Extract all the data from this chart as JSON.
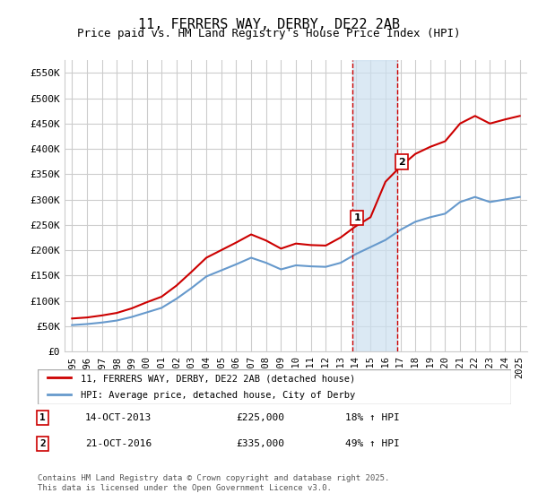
{
  "title": "11, FERRERS WAY, DERBY, DE22 2AB",
  "subtitle": "Price paid vs. HM Land Registry's House Price Index (HPI)",
  "xlabel": "",
  "ylabel": "",
  "ylim": [
    0,
    575000
  ],
  "yticks": [
    0,
    50000,
    100000,
    150000,
    200000,
    250000,
    300000,
    350000,
    400000,
    450000,
    500000,
    550000
  ],
  "ytick_labels": [
    "£0",
    "£50K",
    "£100K",
    "£150K",
    "£200K",
    "£250K",
    "£300K",
    "£350K",
    "£400K",
    "£450K",
    "£500K",
    "£550K"
  ],
  "transaction1_date": "14-OCT-2013",
  "transaction1_price": 225000,
  "transaction1_hpi": "18% ↑ HPI",
  "transaction2_date": "21-OCT-2016",
  "transaction2_price": 335000,
  "transaction2_hpi": "49% ↑ HPI",
  "line1_color": "#cc0000",
  "line2_color": "#6699cc",
  "shade_color": "#cce0f0",
  "vline_color": "#cc0000",
  "legend_label1": "11, FERRERS WAY, DERBY, DE22 2AB (detached house)",
  "legend_label2": "HPI: Average price, detached house, City of Derby",
  "footer": "Contains HM Land Registry data © Crown copyright and database right 2025.\nThis data is licensed under the Open Government Licence v3.0.",
  "background_color": "#ffffff",
  "grid_color": "#cccccc",
  "title_fontsize": 11,
  "subtitle_fontsize": 9,
  "tick_fontsize": 8,
  "hpi_years": [
    1995,
    1996,
    1997,
    1998,
    1999,
    2000,
    2001,
    2002,
    2003,
    2004,
    2005,
    2006,
    2007,
    2008,
    2009,
    2010,
    2011,
    2012,
    2013,
    2014,
    2015,
    2016,
    2017,
    2018,
    2019,
    2020,
    2021,
    2022,
    2023,
    2024,
    2025
  ],
  "hpi_values": [
    52000,
    54000,
    57000,
    61000,
    68000,
    77000,
    86000,
    104000,
    125000,
    148000,
    160000,
    172000,
    185000,
    175000,
    162000,
    170000,
    168000,
    167000,
    175000,
    192000,
    206000,
    220000,
    240000,
    256000,
    265000,
    272000,
    295000,
    305000,
    295000,
    300000,
    305000
  ],
  "property_years": [
    1995,
    1996,
    1997,
    1998,
    1999,
    2000,
    2001,
    2002,
    2003,
    2004,
    2005,
    2006,
    2007,
    2008,
    2009,
    2010,
    2011,
    2012,
    2013,
    2014,
    2015,
    2016,
    2017,
    2018,
    2019,
    2020,
    2021,
    2022,
    2023,
    2024,
    2025
  ],
  "property_values": [
    65000,
    67000,
    71000,
    76000,
    85000,
    97000,
    108000,
    130000,
    157000,
    185000,
    200000,
    215000,
    231000,
    219000,
    203000,
    213000,
    210000,
    209000,
    225000,
    247000,
    265000,
    335000,
    365000,
    390000,
    404000,
    415000,
    450000,
    465000,
    450000,
    458000,
    465000
  ]
}
